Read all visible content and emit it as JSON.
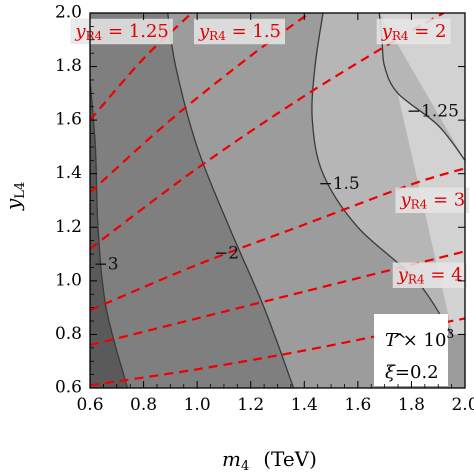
{
  "chart_data": {
    "type": "contour",
    "xlabel": {
      "main": "m",
      "sub": "4",
      "unit": "(TeV)"
    },
    "ylabel": {
      "main": "y",
      "sub": "L4"
    },
    "xlim": [
      0.6,
      2.0
    ],
    "ylim": [
      0.6,
      2.0
    ],
    "x_ticks": [
      "0.6",
      "0.8",
      "1.0",
      "1.2",
      "1.4",
      "1.6",
      "1.8",
      "2.0"
    ],
    "y_ticks": [
      "0.6",
      "0.8",
      "1.0",
      "1.2",
      "1.4",
      "1.6",
      "1.8",
      "2.0"
    ],
    "fill_levels": [
      {
        "color": "#5a5a5a",
        "range": "< -3"
      },
      {
        "color": "#7f7f7f",
        "range": "-3 to -2"
      },
      {
        "color": "#9c9c9c",
        "range": "-2 to -1.5"
      },
      {
        "color": "#b6b6b6",
        "range": "-1.5 to -1.25"
      },
      {
        "color": "#d2d2d2",
        "range": "> -1.25"
      }
    ],
    "contours": [
      {
        "level": "-3",
        "points": [
          [
            0.74,
            0.6
          ],
          [
            0.66,
            0.9
          ],
          [
            0.63,
            1.2
          ],
          [
            0.62,
            1.5
          ],
          [
            0.6,
            1.75
          ]
        ]
      },
      {
        "level": "-2",
        "points": [
          [
            1.36,
            0.6
          ],
          [
            1.25,
            0.9
          ],
          [
            1.12,
            1.2
          ],
          [
            1.0,
            1.5
          ],
          [
            0.92,
            1.8
          ],
          [
            0.89,
            2.0
          ]
        ]
      },
      {
        "level": "-1.5",
        "points": [
          [
            1.95,
            0.8
          ],
          [
            1.82,
            1.0
          ],
          [
            1.6,
            1.2
          ],
          [
            1.47,
            1.4
          ],
          [
            1.43,
            1.6
          ],
          [
            1.44,
            1.8
          ],
          [
            1.47,
            2.0
          ]
        ]
      },
      {
        "level": "-1.25",
        "points": [
          [
            2.0,
            1.45
          ],
          [
            1.9,
            1.58
          ],
          [
            1.75,
            1.7
          ],
          [
            1.7,
            1.8
          ],
          [
            1.69,
            1.9
          ],
          [
            1.68,
            2.0
          ]
        ]
      }
    ],
    "contour_labels": [
      {
        "text": "-3",
        "x": 0.66,
        "y": 1.06
      },
      {
        "text": "-2",
        "x": 1.11,
        "y": 1.1
      },
      {
        "text": "-1.5",
        "x": 1.53,
        "y": 1.36
      },
      {
        "text": "-1.25",
        "x": 1.88,
        "y": 1.63
      }
    ],
    "yR4_lines": [
      {
        "value": "1.25",
        "points": [
          [
            0.6,
            1.6
          ],
          [
            0.8,
            1.83
          ],
          [
            0.98,
            2.0
          ]
        ]
      },
      {
        "value": "1.5",
        "points": [
          [
            0.6,
            1.33
          ],
          [
            0.9,
            1.6
          ],
          [
            1.2,
            1.84
          ],
          [
            1.42,
            2.0
          ]
        ]
      },
      {
        "value": "2",
        "points": [
          [
            0.6,
            1.12
          ],
          [
            1.0,
            1.42
          ],
          [
            1.4,
            1.69
          ],
          [
            1.76,
            1.91
          ],
          [
            1.92,
            2.0
          ]
        ]
      },
      {
        "value": "3",
        "points": [
          [
            0.6,
            0.89
          ],
          [
            1.0,
            1.06
          ],
          [
            1.4,
            1.21
          ],
          [
            1.8,
            1.36
          ],
          [
            2.0,
            1.42
          ]
        ]
      },
      {
        "value": "4",
        "points": [
          [
            0.6,
            0.76
          ],
          [
            1.0,
            0.86
          ],
          [
            1.4,
            0.96
          ],
          [
            1.8,
            1.06
          ],
          [
            2.0,
            1.11
          ]
        ]
      },
      {
        "value": "",
        "points": [
          [
            0.6,
            0.61
          ],
          [
            1.0,
            0.67
          ],
          [
            1.4,
            0.74
          ],
          [
            1.8,
            0.82
          ],
          [
            2.0,
            0.86
          ]
        ]
      }
    ],
    "yR4_labels": [
      {
        "prefix": "y",
        "sub": "R4",
        "rest": " = 1.25",
        "x": 0.72,
        "y": 1.93
      },
      {
        "prefix": "y",
        "sub": "R4",
        "rest": " = 1.5",
        "x": 1.16,
        "y": 1.93
      },
      {
        "prefix": "y",
        "sub": "R4",
        "rest": " = 2",
        "x": 1.81,
        "y": 1.93
      },
      {
        "prefix": "y",
        "sub": "R4",
        "rest": " = 3",
        "x": 1.88,
        "y": 1.3
      },
      {
        "prefix": "y",
        "sub": "R4",
        "rest": " = 4",
        "x": 1.87,
        "y": 1.02
      }
    ],
    "annotation": {
      "line1": {
        "symbol": "T",
        "rest": " × 10",
        "sup": "3"
      },
      "line2": {
        "symbol": "ξ",
        "rest": "=0.2"
      }
    }
  }
}
